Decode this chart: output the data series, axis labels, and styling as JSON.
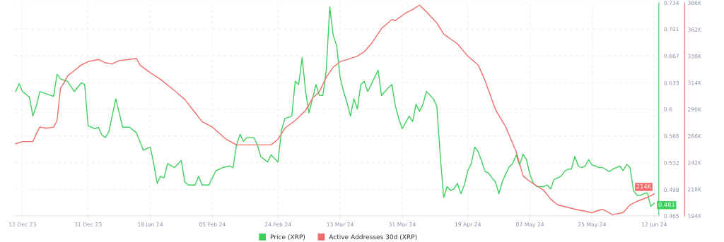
{
  "chart_data": {
    "type": "line",
    "legend": "bottom",
    "grid": true,
    "marker": "none",
    "line_style": "solid",
    "xlim": [
      "2023-12-09T16:00",
      "2024-06-13T08:00"
    ],
    "xticks": [
      {
        "value": "2023-12-12",
        "label": "12 Dec 23"
      },
      {
        "value": "2023-12-31",
        "label": "31 Dec 23"
      },
      {
        "value": "2024-01-18",
        "label": "18 Jan 24"
      },
      {
        "value": "2024-02-05",
        "label": "05 Feb 24"
      },
      {
        "value": "2024-02-24",
        "label": "24 Feb 24"
      },
      {
        "value": "2024-03-13",
        "label": "13 Mar 24"
      },
      {
        "value": "2024-03-31",
        "label": "31 Mar 24"
      },
      {
        "value": "2024-04-19",
        "label": "19 Apr 24"
      },
      {
        "value": "2024-05-07",
        "label": "07 May 24"
      },
      {
        "value": "2024-05-25",
        "label": "25 May 24"
      },
      {
        "value": "2024-06-12",
        "label": "12 Jun 24"
      }
    ],
    "ylim": [
      0.465,
      0.734
    ],
    "yticks": [
      0.465,
      0.498,
      0.532,
      0.566,
      0.6,
      0.633,
      0.667,
      0.701,
      0.734
    ],
    "y2lim": [
      194000,
      386000
    ],
    "y2ticks": [
      {
        "value": 194000,
        "label": "194K"
      },
      {
        "value": 218000,
        "label": "218K"
      },
      {
        "value": 242000,
        "label": "242K"
      },
      {
        "value": 266000,
        "label": "266K"
      },
      {
        "value": 290000,
        "label": "290K"
      },
      {
        "value": 314000,
        "label": "314K"
      },
      {
        "value": 338000,
        "label": "338K"
      },
      {
        "value": 362000,
        "label": "362K"
      },
      {
        "value": 386000,
        "label": "386K"
      }
    ],
    "series": [
      {
        "name": "Price (XRP)",
        "color": "#3ecf5c",
        "x": [
          "2023-12-10",
          "2023-12-11",
          "2023-12-12",
          "2023-12-14",
          "2023-12-15",
          "2023-12-16",
          "2023-12-17",
          "2023-12-19",
          "2023-12-21",
          "2023-12-22",
          "2023-12-23",
          "2023-12-25",
          "2023-12-27",
          "2023-12-29",
          "2023-12-30",
          "2023-12-31",
          "2024-01-02",
          "2024-01-03",
          "2024-01-04",
          "2024-01-05",
          "2024-01-06",
          "2024-01-08",
          "2024-01-10",
          "2024-01-12",
          "2024-01-14",
          "2024-01-16",
          "2024-01-18",
          "2024-01-19",
          "2024-01-20",
          "2024-01-21",
          "2024-01-22",
          "2024-01-23",
          "2024-01-25",
          "2024-01-27",
          "2024-01-28",
          "2024-01-29",
          "2024-01-31",
          "2024-02-01",
          "2024-02-02",
          "2024-02-04",
          "2024-02-06",
          "2024-02-08",
          "2024-02-10",
          "2024-02-11",
          "2024-02-12",
          "2024-02-13",
          "2024-02-14",
          "2024-02-15",
          "2024-02-17",
          "2024-02-18",
          "2024-02-19",
          "2024-02-21",
          "2024-02-22",
          "2024-02-24",
          "2024-02-25",
          "2024-02-26",
          "2024-02-28",
          "2024-02-29",
          "2024-03-01",
          "2024-03-02",
          "2024-03-03",
          "2024-03-04",
          "2024-03-05",
          "2024-03-06",
          "2024-03-07",
          "2024-03-08",
          "2024-03-09",
          "2024-03-10",
          "2024-03-11",
          "2024-03-12",
          "2024-03-13",
          "2024-03-14",
          "2024-03-15",
          "2024-03-16",
          "2024-03-17",
          "2024-03-18",
          "2024-03-19",
          "2024-03-20",
          "2024-03-21",
          "2024-03-23",
          "2024-03-24",
          "2024-03-25",
          "2024-03-27",
          "2024-03-28",
          "2024-03-29",
          "2024-03-30",
          "2024-03-31",
          "2024-04-02",
          "2024-04-03",
          "2024-04-04",
          "2024-04-05",
          "2024-04-06",
          "2024-04-07",
          "2024-04-09",
          "2024-04-10",
          "2024-04-11",
          "2024-04-12",
          "2024-04-13",
          "2024-04-14",
          "2024-04-15",
          "2024-04-16",
          "2024-04-17",
          "2024-04-18",
          "2024-04-19",
          "2024-04-20",
          "2024-04-21",
          "2024-04-22",
          "2024-04-23",
          "2024-04-24",
          "2024-04-25",
          "2024-04-26",
          "2024-04-27",
          "2024-04-28",
          "2024-04-29",
          "2024-04-30",
          "2024-05-01",
          "2024-05-02",
          "2024-05-03",
          "2024-05-04",
          "2024-05-05",
          "2024-05-06",
          "2024-05-07",
          "2024-05-08",
          "2024-05-09",
          "2024-05-10",
          "2024-05-11",
          "2024-05-12",
          "2024-05-13",
          "2024-05-14",
          "2024-05-16",
          "2024-05-17",
          "2024-05-18",
          "2024-05-19",
          "2024-05-20",
          "2024-05-21",
          "2024-05-22",
          "2024-05-23",
          "2024-05-24",
          "2024-05-25",
          "2024-05-26",
          "2024-05-27",
          "2024-05-28",
          "2024-05-30",
          "2024-05-31",
          "2024-06-01",
          "2024-06-02",
          "2024-06-03",
          "2024-06-04",
          "2024-06-05",
          "2024-06-06",
          "2024-06-07",
          "2024-06-08",
          "2024-06-09",
          "2024-06-10",
          "2024-06-11",
          "2024-06-12"
        ],
        "values": [
          0.622,
          0.632,
          0.622,
          0.615,
          0.591,
          0.604,
          0.622,
          0.619,
          0.616,
          0.644,
          0.638,
          0.635,
          0.622,
          0.633,
          0.631,
          0.579,
          0.575,
          0.577,
          0.567,
          0.564,
          0.571,
          0.613,
          0.577,
          0.577,
          0.57,
          0.548,
          0.552,
          0.531,
          0.506,
          0.515,
          0.513,
          0.531,
          0.526,
          0.535,
          0.508,
          0.504,
          0.504,
          0.515,
          0.504,
          0.504,
          0.522,
          0.526,
          0.528,
          0.526,
          0.555,
          0.568,
          0.559,
          0.564,
          0.564,
          0.555,
          0.54,
          0.533,
          0.542,
          0.533,
          0.573,
          0.588,
          0.591,
          0.635,
          0.631,
          0.665,
          0.622,
          0.595,
          0.613,
          0.631,
          0.617,
          0.617,
          0.649,
          0.729,
          0.693,
          0.68,
          0.64,
          0.622,
          0.608,
          0.591,
          0.613,
          0.6,
          0.631,
          0.635,
          0.622,
          0.64,
          0.649,
          0.617,
          0.627,
          0.631,
          0.604,
          0.588,
          0.575,
          0.591,
          0.584,
          0.606,
          0.597,
          0.606,
          0.622,
          0.613,
          0.604,
          0.542,
          0.488,
          0.502,
          0.497,
          0.499,
          0.506,
          0.493,
          0.504,
          0.522,
          0.531,
          0.552,
          0.546,
          0.534,
          0.521,
          0.519,
          0.513,
          0.508,
          0.493,
          0.508,
          0.518,
          0.527,
          0.531,
          0.542,
          0.529,
          0.543,
          0.536,
          0.517,
          0.506,
          0.502,
          0.502,
          0.502,
          0.504,
          0.499,
          0.511,
          0.515,
          0.521,
          0.524,
          0.524,
          0.54,
          0.528,
          0.526,
          0.528,
          0.536,
          0.529,
          0.528,
          0.526,
          0.526,
          0.521,
          0.524,
          0.526,
          0.528,
          0.522,
          0.53,
          0.526,
          0.497,
          0.491,
          0.491,
          0.493,
          0.494,
          0.477,
          0.481
        ],
        "value_labels": [
          null,
          null,
          null,
          null,
          null,
          null,
          null,
          null,
          null,
          null,
          null,
          null,
          null,
          null,
          null,
          null,
          null,
          null,
          null,
          null,
          null,
          null,
          null,
          null,
          null,
          null,
          null,
          null,
          null,
          null,
          null,
          null,
          null,
          null,
          null,
          null,
          null,
          null,
          null,
          null,
          null,
          null,
          null,
          null,
          null,
          null,
          null,
          null,
          null,
          null,
          null,
          null,
          null,
          null,
          null,
          null,
          null,
          null,
          null,
          null,
          null,
          null,
          null,
          null,
          null,
          null,
          null,
          null,
          null,
          null,
          null,
          null,
          null,
          null,
          null,
          null,
          null,
          null,
          null,
          null,
          null,
          null,
          null,
          null,
          null,
          null,
          null,
          null,
          null,
          null,
          null,
          null,
          null,
          null,
          null,
          null,
          null,
          null,
          null,
          null,
          null,
          null,
          null,
          null,
          null,
          null,
          null,
          null,
          null,
          null,
          null,
          null,
          null,
          null,
          null,
          null,
          null,
          null,
          null,
          null,
          null,
          null,
          null,
          null,
          null,
          null,
          null,
          null,
          null,
          null,
          null,
          null,
          null,
          null,
          null,
          null,
          null,
          null,
          null,
          null,
          null,
          null,
          null,
          null,
          null,
          null,
          null,
          null,
          null,
          null,
          null,
          null,
          null,
          null,
          null,
          "0.481"
        ]
      },
      {
        "name": "Active Addresses 30d (XRP)",
        "color": "#f26b6b",
        "axis": "y2",
        "x": [
          "2023-12-10",
          "2023-12-12",
          "2023-12-15",
          "2023-12-16",
          "2023-12-17",
          "2023-12-19",
          "2023-12-21",
          "2023-12-22",
          "2023-12-23",
          "2023-12-24",
          "2023-12-25",
          "2023-12-27",
          "2023-12-29",
          "2023-12-31",
          "2024-01-03",
          "2024-01-05",
          "2024-01-07",
          "2024-01-09",
          "2024-01-12",
          "2024-01-14",
          "2024-01-15",
          "2024-01-18",
          "2024-01-21",
          "2024-01-25",
          "2024-01-28",
          "2024-01-31",
          "2024-02-02",
          "2024-02-05",
          "2024-02-09",
          "2024-02-12",
          "2024-02-15",
          "2024-02-19",
          "2024-02-22",
          "2024-02-24",
          "2024-02-26",
          "2024-02-29",
          "2024-03-03",
          "2024-03-05",
          "2024-03-07",
          "2024-03-09",
          "2024-03-11",
          "2024-03-13",
          "2024-03-15",
          "2024-03-18",
          "2024-03-20",
          "2024-03-22",
          "2024-03-25",
          "2024-03-28",
          "2024-03-29",
          "2024-04-01",
          "2024-04-03",
          "2024-04-05",
          "2024-04-07",
          "2024-04-10",
          "2024-04-12",
          "2024-04-16",
          "2024-04-19",
          "2024-04-22",
          "2024-04-24",
          "2024-04-27",
          "2024-04-30",
          "2024-05-03",
          "2024-05-05",
          "2024-05-07",
          "2024-05-11",
          "2024-05-13",
          "2024-05-15",
          "2024-05-20",
          "2024-05-25",
          "2024-05-28",
          "2024-05-31",
          "2024-06-03",
          "2024-06-05",
          "2024-06-07",
          "2024-06-11",
          "2024-06-12"
        ],
        "values": [
          259000,
          261000,
          261000,
          268000,
          274000,
          273000,
          274000,
          280000,
          309000,
          314000,
          320000,
          325000,
          330000,
          333000,
          335000,
          332000,
          331000,
          334000,
          335000,
          336000,
          330000,
          323000,
          317000,
          307000,
          299000,
          287000,
          279000,
          274000,
          263000,
          258000,
          258000,
          258000,
          258000,
          263000,
          273000,
          280000,
          289000,
          300000,
          306000,
          319000,
          328000,
          333000,
          335000,
          338000,
          342000,
          349000,
          363000,
          371000,
          370000,
          377000,
          380000,
          384000,
          378000,
          368000,
          358000,
          349000,
          338000,
          330000,
          316000,
          290000,
          274000,
          252000,
          230000,
          225000,
          217000,
          209000,
          204000,
          200000,
          197000,
          200000,
          195000,
          197000,
          204000,
          207000,
          212000,
          214000
        ],
        "value_labels": [
          null,
          null,
          null,
          null,
          null,
          null,
          null,
          null,
          null,
          null,
          null,
          null,
          null,
          null,
          null,
          null,
          null,
          null,
          null,
          null,
          null,
          null,
          null,
          null,
          null,
          null,
          null,
          null,
          null,
          null,
          null,
          null,
          null,
          null,
          null,
          null,
          null,
          null,
          null,
          null,
          null,
          null,
          null,
          null,
          null,
          null,
          null,
          null,
          null,
          null,
          null,
          null,
          null,
          null,
          null,
          null,
          null,
          null,
          null,
          null,
          null,
          null,
          null,
          null,
          null,
          null,
          null,
          null,
          null,
          null,
          null,
          null,
          null,
          null,
          null,
          "214K"
        ]
      }
    ]
  }
}
